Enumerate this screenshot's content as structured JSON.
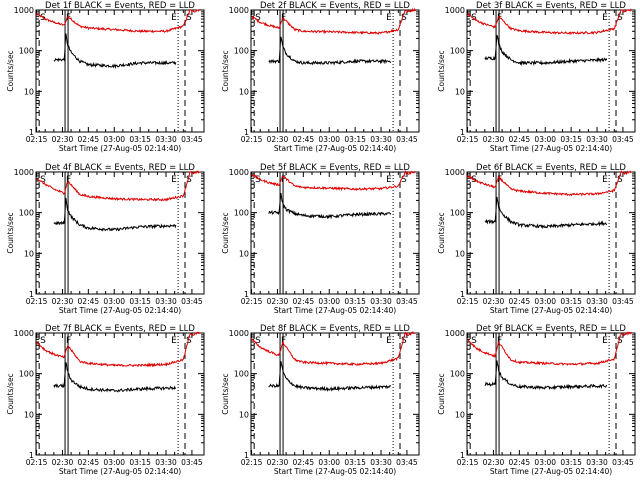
{
  "colors": {
    "background": "#ffffff",
    "axes": "#000000",
    "lld": "#e00000",
    "events": "#000000"
  },
  "chart_data": {
    "type": "line",
    "layout": "3x3 grid",
    "yscale": "log",
    "ylim": [
      1,
      1000
    ],
    "yticks": [
      "1",
      "10",
      "100",
      "1000"
    ],
    "ylabel": "Counts/sec",
    "xlabel": "Start Time (27-Aug-05 02:14:40)",
    "xlim": [
      "02:14:40",
      "03:52:00"
    ],
    "xticks": [
      "02:15",
      "02:30",
      "02:45",
      "03:00",
      "03:15",
      "03:30",
      "03:45"
    ],
    "markers": [
      {
        "label": "S",
        "time": "02:16:30"
      },
      {
        "label": "F",
        "time": "02:31:30"
      },
      {
        "label": "E",
        "time": "03:37:00"
      },
      {
        "label": "S",
        "time": "03:41:00"
      }
    ],
    "panels": [
      {
        "title": "Det 1f BLACK = Events, RED = LLD",
        "lld_level": 290,
        "events_level": 50,
        "series": [
          {
            "name": "RED = LLD",
            "x": [
              "02:15",
              "02:20",
              "02:25",
              "02:31",
              "02:33",
              "02:40",
              "02:45",
              "03:00",
              "03:15",
              "03:30",
              "03:40",
              "03:44",
              "03:46",
              "03:48",
              "03:50"
            ],
            "y": [
              800,
              600,
              500,
              420,
              700,
              400,
              360,
              330,
              300,
              300,
              400,
              1000,
              900,
              1000,
              1000
            ]
          },
          {
            "name": "BLACK = Events",
            "x": [
              "02:25",
              "02:31",
              "02:32",
              "02:33",
              "02:35",
              "02:40",
              "02:45",
              "03:00",
              "03:15",
              "03:36"
            ],
            "y": [
              60,
              60,
              250,
              140,
              90,
              55,
              45,
              42,
              50,
              50
            ]
          }
        ]
      },
      {
        "title": "Det 2f BLACK = Events, RED = LLD",
        "lld_level": 280,
        "events_level": 55,
        "series": [
          {
            "name": "RED = LLD",
            "x": [
              "02:15",
              "02:20",
              "02:25",
              "02:31",
              "02:33",
              "02:40",
              "02:45",
              "03:00",
              "03:15",
              "03:30",
              "03:40",
              "03:44",
              "03:46",
              "03:48",
              "03:50"
            ],
            "y": [
              700,
              500,
              420,
              360,
              650,
              330,
              300,
              290,
              280,
              270,
              330,
              1000,
              900,
              1000,
              1000
            ]
          },
          {
            "name": "BLACK = Events",
            "x": [
              "02:25",
              "02:31",
              "02:32",
              "02:33",
              "02:35",
              "02:40",
              "02:45",
              "03:00",
              "03:15",
              "03:36"
            ],
            "y": [
              55,
              55,
              230,
              130,
              85,
              55,
              50,
              50,
              55,
              55
            ]
          }
        ]
      },
      {
        "title": "Det 3f BLACK = Events, RED = LLD",
        "lld_level": 300,
        "events_level": 60,
        "series": [
          {
            "name": "RED = LLD",
            "x": [
              "02:15",
              "02:20",
              "02:25",
              "02:31",
              "02:33",
              "02:40",
              "02:45",
              "03:00",
              "03:15",
              "03:30",
              "03:40",
              "03:44",
              "03:46",
              "03:48",
              "03:50"
            ],
            "y": [
              800,
              550,
              450,
              380,
              700,
              350,
              310,
              280,
              270,
              280,
              350,
              1000,
              900,
              1000,
              1000
            ]
          },
          {
            "name": "BLACK = Events",
            "x": [
              "02:25",
              "02:31",
              "02:32",
              "02:33",
              "02:35",
              "02:40",
              "02:45",
              "03:00",
              "03:15",
              "03:36"
            ],
            "y": [
              65,
              65,
              260,
              150,
              95,
              60,
              50,
              50,
              55,
              60
            ]
          }
        ]
      },
      {
        "title": "Det 4f BLACK = Events, RED = LLD",
        "lld_level": 220,
        "events_level": 45,
        "series": [
          {
            "name": "RED = LLD",
            "x": [
              "02:15",
              "02:20",
              "02:25",
              "02:31",
              "02:33",
              "02:40",
              "02:45",
              "03:00",
              "03:15",
              "03:30",
              "03:40",
              "03:44",
              "03:46",
              "03:48",
              "03:50"
            ],
            "y": [
              700,
              500,
              380,
              300,
              600,
              280,
              250,
              220,
              210,
              210,
              260,
              1000,
              900,
              1000,
              1000
            ]
          },
          {
            "name": "BLACK = Events",
            "x": [
              "02:25",
              "02:31",
              "02:32",
              "02:33",
              "02:35",
              "02:40",
              "02:45",
              "03:00",
              "03:15",
              "03:36"
            ],
            "y": [
              55,
              55,
              220,
              120,
              80,
              50,
              42,
              38,
              45,
              48
            ]
          }
        ]
      },
      {
        "title": "Det 5f BLACK = Events, RED = LLD",
        "lld_level": 370,
        "events_level": 90,
        "series": [
          {
            "name": "RED = LLD",
            "x": [
              "02:15",
              "02:20",
              "02:25",
              "02:31",
              "02:33",
              "02:40",
              "02:45",
              "03:00",
              "03:15",
              "03:30",
              "03:40",
              "03:44",
              "03:46",
              "03:48",
              "03:50"
            ],
            "y": [
              900,
              650,
              550,
              480,
              800,
              450,
              420,
              400,
              380,
              390,
              450,
              1000,
              900,
              1000,
              1000
            ]
          },
          {
            "name": "BLACK = Events",
            "x": [
              "02:25",
              "02:31",
              "02:32",
              "02:33",
              "02:35",
              "02:40",
              "02:45",
              "03:00",
              "03:15",
              "03:36"
            ],
            "y": [
              100,
              100,
              300,
              170,
              120,
              95,
              85,
              80,
              90,
              95
            ]
          }
        ]
      },
      {
        "title": "Det 6f BLACK = Events, RED = LLD",
        "lld_level": 300,
        "events_level": 55,
        "series": [
          {
            "name": "RED = LLD",
            "x": [
              "02:15",
              "02:20",
              "02:25",
              "02:31",
              "02:33",
              "02:40",
              "02:45",
              "03:00",
              "03:15",
              "03:30",
              "03:40",
              "03:44",
              "03:46",
              "03:48",
              "03:50"
            ],
            "y": [
              800,
              600,
              500,
              420,
              750,
              380,
              340,
              300,
              280,
              290,
              350,
              1000,
              900,
              1000,
              1000
            ]
          },
          {
            "name": "BLACK = Events",
            "x": [
              "02:25",
              "02:31",
              "02:32",
              "02:33",
              "02:35",
              "02:40",
              "02:45",
              "03:00",
              "03:15",
              "03:36"
            ],
            "y": [
              60,
              60,
              250,
              140,
              95,
              60,
              50,
              45,
              50,
              55
            ]
          }
        ]
      },
      {
        "title": "Det 7f BLACK = Events, RED = LLD",
        "lld_level": 180,
        "events_level": 45,
        "series": [
          {
            "name": "RED = LLD",
            "x": [
              "02:15",
              "02:20",
              "02:25",
              "02:31",
              "02:33",
              "02:40",
              "02:45",
              "03:00",
              "03:15",
              "03:30",
              "03:40",
              "03:44",
              "03:46",
              "03:48",
              "03:50"
            ],
            "y": [
              600,
              380,
              300,
              250,
              500,
              200,
              180,
              160,
              160,
              170,
              220,
              1000,
              900,
              1000,
              1000
            ]
          },
          {
            "name": "BLACK = Events",
            "x": [
              "02:25",
              "02:31",
              "02:32",
              "02:33",
              "02:35",
              "02:40",
              "02:45",
              "03:00",
              "03:15",
              "03:36"
            ],
            "y": [
              50,
              50,
              200,
              110,
              70,
              48,
              42,
              38,
              42,
              45
            ]
          }
        ]
      },
      {
        "title": "Det 8f BLACK = Events, RED = LLD",
        "lld_level": 190,
        "events_level": 45,
        "series": [
          {
            "name": "RED = LLD",
            "x": [
              "02:15",
              "02:20",
              "02:25",
              "02:31",
              "02:33",
              "02:40",
              "02:45",
              "03:00",
              "03:15",
              "03:30",
              "03:40",
              "03:44",
              "03:46",
              "03:48",
              "03:50"
            ],
            "y": [
              700,
              450,
              350,
              280,
              600,
              220,
              190,
              180,
              170,
              180,
              240,
              1000,
              900,
              1000,
              1000
            ]
          },
          {
            "name": "BLACK = Events",
            "x": [
              "02:25",
              "02:31",
              "02:32",
              "02:33",
              "02:35",
              "02:40",
              "02:45",
              "03:00",
              "03:15",
              "03:36"
            ],
            "y": [
              50,
              50,
              210,
              120,
              75,
              50,
              45,
              42,
              45,
              48
            ]
          }
        ]
      },
      {
        "title": "Det 9f BLACK = Events, RED = LLD",
        "lld_level": 200,
        "events_level": 50,
        "series": [
          {
            "name": "RED = LLD",
            "x": [
              "02:15",
              "02:20",
              "02:25",
              "02:31",
              "02:33",
              "02:40",
              "02:45",
              "03:00",
              "03:15",
              "03:30",
              "03:40",
              "03:44",
              "03:46",
              "03:48",
              "03:50"
            ],
            "y": [
              700,
              420,
              330,
              270,
              600,
              220,
              190,
              180,
              170,
              180,
              230,
              1000,
              900,
              1000,
              1000
            ]
          },
          {
            "name": "BLACK = Events",
            "x": [
              "02:25",
              "02:31",
              "02:32",
              "02:33",
              "02:35",
              "02:40",
              "02:45",
              "03:00",
              "03:15",
              "03:36"
            ],
            "y": [
              55,
              55,
              220,
              120,
              80,
              55,
              48,
              45,
              48,
              50
            ]
          }
        ]
      }
    ]
  }
}
